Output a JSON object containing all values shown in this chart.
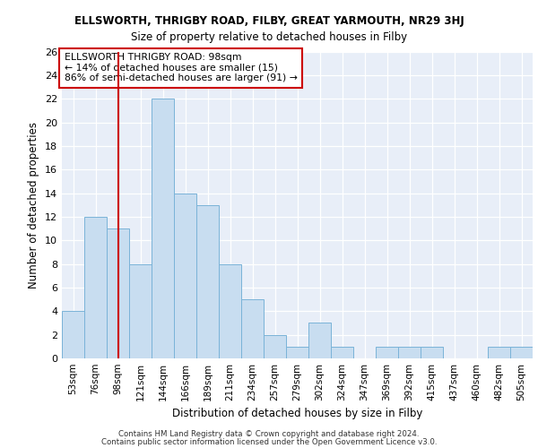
{
  "title1": "ELLSWORTH, THRIGBY ROAD, FILBY, GREAT YARMOUTH, NR29 3HJ",
  "title2": "Size of property relative to detached houses in Filby",
  "xlabel": "Distribution of detached houses by size in Filby",
  "ylabel": "Number of detached properties",
  "categories": [
    "53sqm",
    "76sqm",
    "98sqm",
    "121sqm",
    "144sqm",
    "166sqm",
    "189sqm",
    "211sqm",
    "234sqm",
    "257sqm",
    "279sqm",
    "302sqm",
    "324sqm",
    "347sqm",
    "369sqm",
    "392sqm",
    "415sqm",
    "437sqm",
    "460sqm",
    "482sqm",
    "505sqm"
  ],
  "values": [
    4,
    12,
    11,
    8,
    22,
    14,
    13,
    8,
    5,
    2,
    1,
    3,
    1,
    0,
    1,
    1,
    1,
    0,
    0,
    1,
    1
  ],
  "bar_color": "#c8ddf0",
  "bar_edge_color": "#7ab3d8",
  "vline_x": 2,
  "vline_color": "#cc0000",
  "annotation_text": "ELLSWORTH THRIGBY ROAD: 98sqm\n← 14% of detached houses are smaller (15)\n86% of semi-detached houses are larger (91) →",
  "annotation_box_color": "#ffffff",
  "annotation_box_edge": "#cc0000",
  "ylim": [
    0,
    26
  ],
  "yticks": [
    0,
    2,
    4,
    6,
    8,
    10,
    12,
    14,
    16,
    18,
    20,
    22,
    24,
    26
  ],
  "background_color": "#e8eef8",
  "footer1": "Contains HM Land Registry data © Crown copyright and database right 2024.",
  "footer2": "Contains public sector information licensed under the Open Government Licence v3.0."
}
